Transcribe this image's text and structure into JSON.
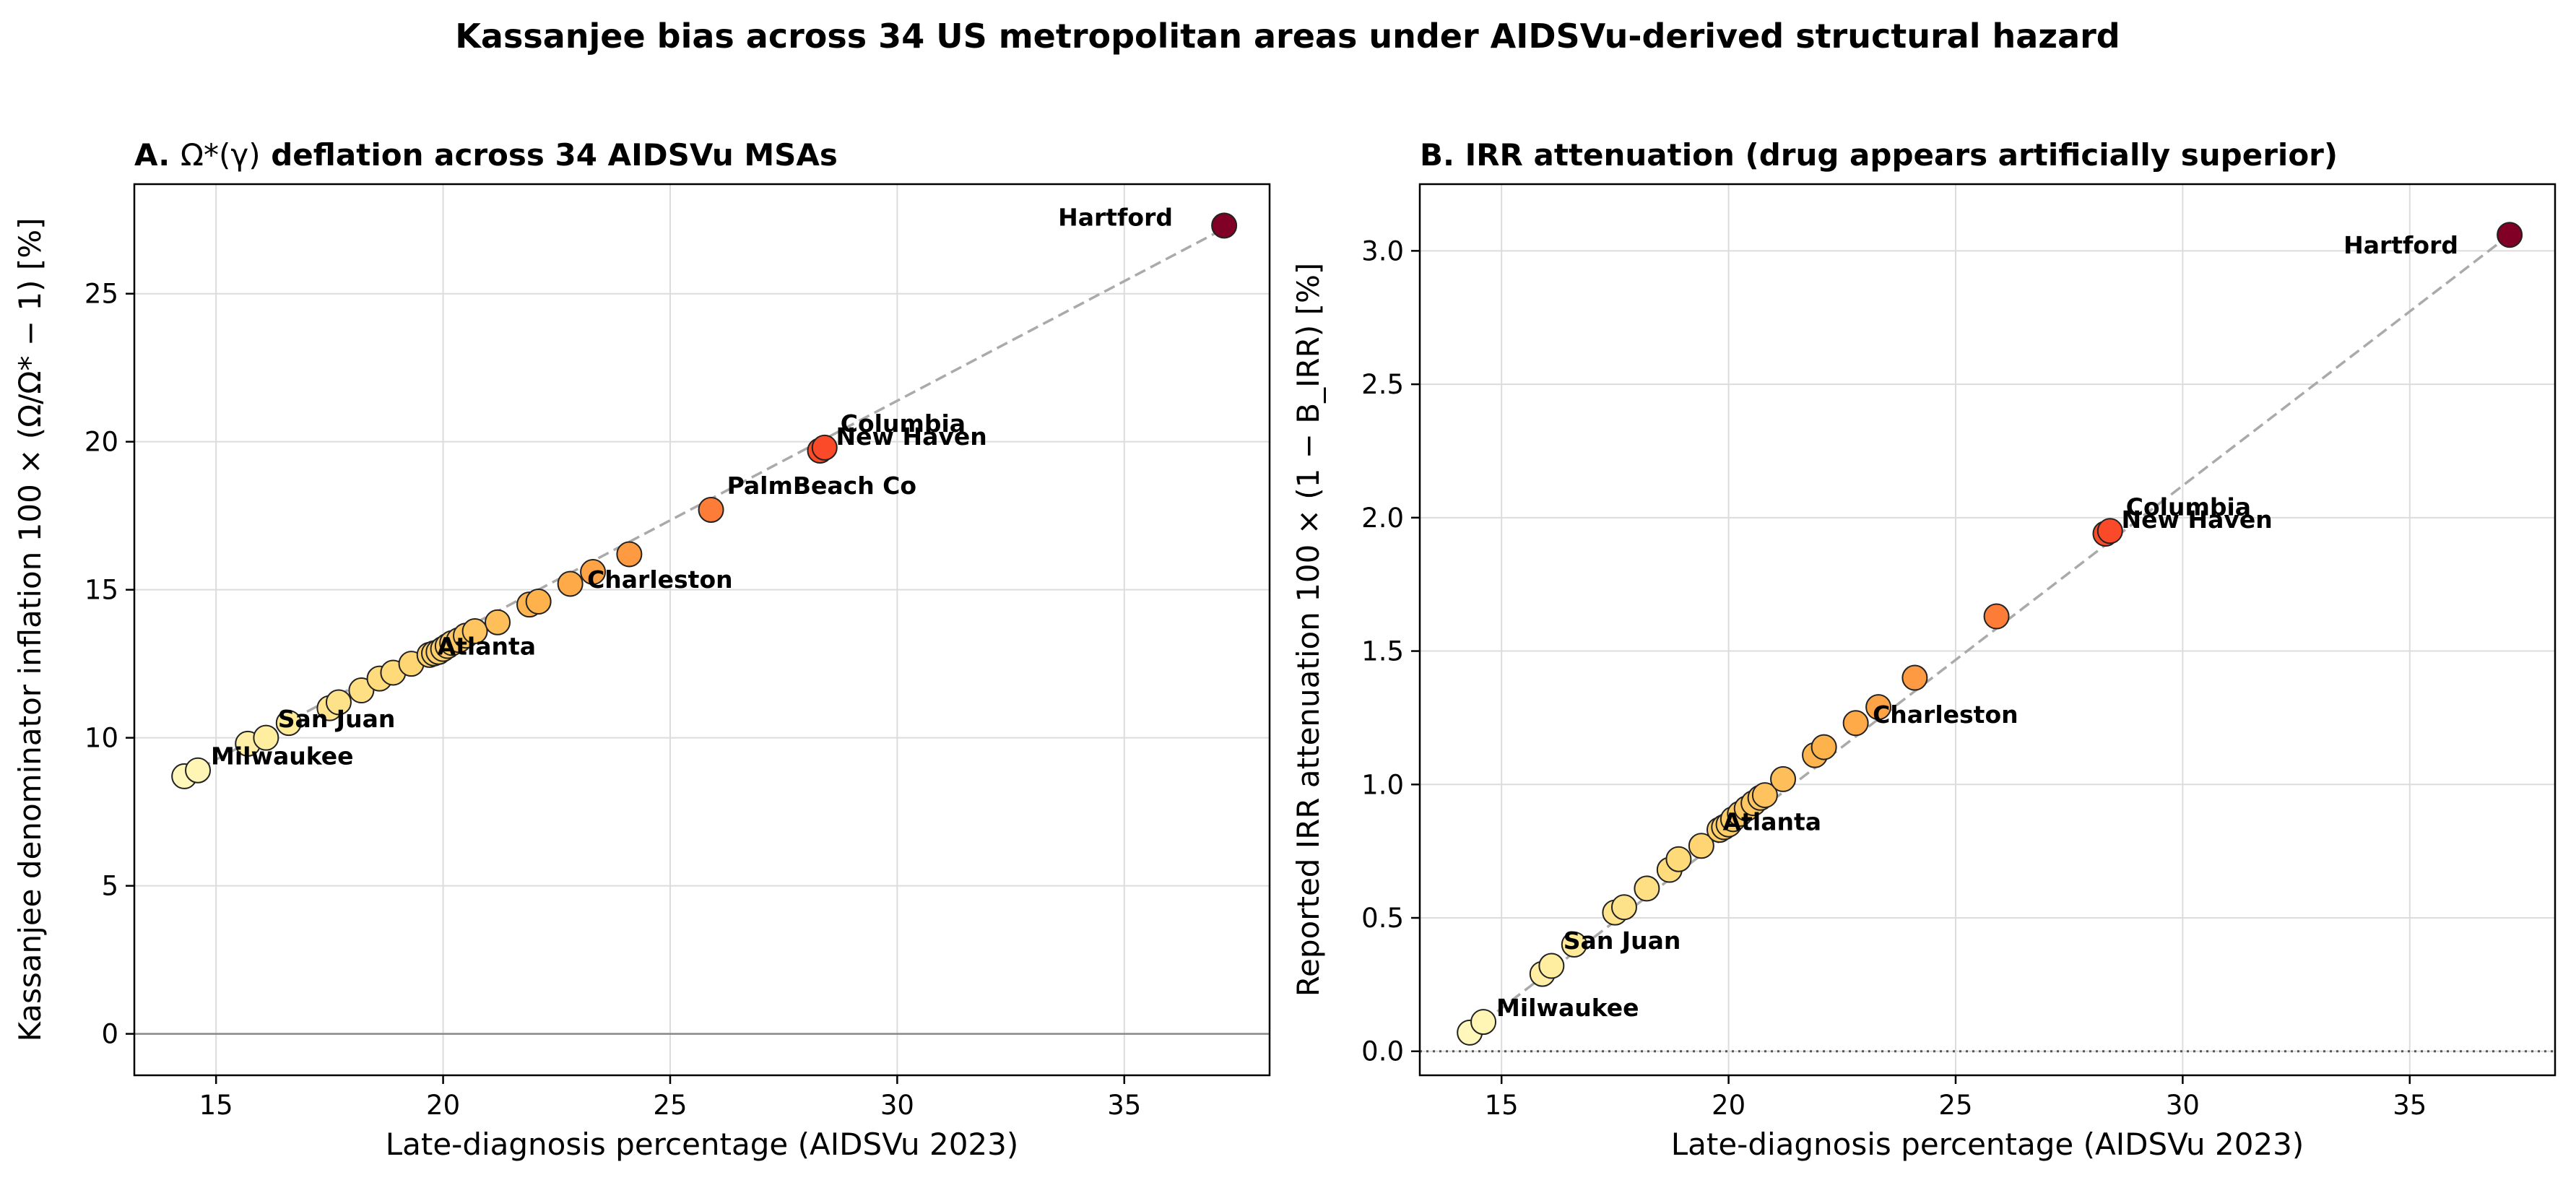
{
  "suptitle": "Kassanjee bias across 34 US metropolitan areas under AIDSVu-derived structural hazard",
  "chart_data": [
    {
      "type": "scatter",
      "title": "A. Ω*(γ) deflation across 34 AIDSVu MSAs",
      "title_prefix": "A. ",
      "title_math": "Ω*(γ)",
      "title_suffix": " deflation across 34 AIDSVu MSAs",
      "xlabel": "Late-diagnosis percentage (AIDSVu 2023)",
      "ylabel": "Kassanjee denominator inflation  100 × (Ω/Ω* − 1) [%]",
      "xlim": [
        13.2,
        38.2
      ],
      "ylim": [
        -1.4,
        28.7
      ],
      "xticks": [
        15,
        20,
        25,
        30,
        35
      ],
      "yticks": [
        0,
        5,
        10,
        15,
        20,
        25
      ],
      "grid": true,
      "reference_line": {
        "y": 0,
        "style": "solid"
      },
      "fit_line": {
        "x": [
          14.3,
          37.2
        ],
        "y": [
          8.7,
          27.2
        ],
        "style": "dashed"
      },
      "colormap": "YlOrRd",
      "points": [
        {
          "x": 14.3,
          "y": 8.7
        },
        {
          "x": 14.6,
          "y": 8.9
        },
        {
          "x": 15.7,
          "y": 9.8
        },
        {
          "x": 16.1,
          "y": 10.0
        },
        {
          "x": 16.6,
          "y": 10.5
        },
        {
          "x": 17.5,
          "y": 11.0
        },
        {
          "x": 17.7,
          "y": 11.2
        },
        {
          "x": 18.2,
          "y": 11.6
        },
        {
          "x": 18.6,
          "y": 12.0
        },
        {
          "x": 18.9,
          "y": 12.2
        },
        {
          "x": 19.3,
          "y": 12.5
        },
        {
          "x": 19.7,
          "y": 12.8
        },
        {
          "x": 19.8,
          "y": 12.85
        },
        {
          "x": 19.9,
          "y": 12.9
        },
        {
          "x": 20.0,
          "y": 13.0
        },
        {
          "x": 20.1,
          "y": 13.1
        },
        {
          "x": 20.2,
          "y": 13.2
        },
        {
          "x": 20.35,
          "y": 13.3
        },
        {
          "x": 20.5,
          "y": 13.45
        },
        {
          "x": 20.7,
          "y": 13.6
        },
        {
          "x": 21.2,
          "y": 13.9
        },
        {
          "x": 21.9,
          "y": 14.5
        },
        {
          "x": 22.1,
          "y": 14.6
        },
        {
          "x": 22.8,
          "y": 15.2
        },
        {
          "x": 23.3,
          "y": 15.6
        },
        {
          "x": 24.1,
          "y": 16.2
        },
        {
          "x": 25.9,
          "y": 17.7
        },
        {
          "x": 28.3,
          "y": 19.7
        },
        {
          "x": 28.4,
          "y": 19.8
        },
        {
          "x": 37.2,
          "y": 27.3
        }
      ],
      "annotations": [
        {
          "text": "Hartford",
          "x": 37.2,
          "y": 27.3
        },
        {
          "text": "Columbia",
          "x": 28.4,
          "y": 19.8
        },
        {
          "text": "New Haven",
          "x": 28.3,
          "y": 19.7
        },
        {
          "text": "PalmBeach Co",
          "x": 25.9,
          "y": 17.7
        },
        {
          "text": "Charleston",
          "x": 23.3,
          "y": 15.6
        },
        {
          "text": "Atlanta",
          "x": 20.0,
          "y": 13.0
        },
        {
          "text": "San Juan",
          "x": 16.6,
          "y": 10.5
        },
        {
          "text": "Milwaukee",
          "x": 14.6,
          "y": 8.9
        }
      ]
    },
    {
      "type": "scatter",
      "title": "B. IRR attenuation (drug appears artificially superior)",
      "title_prefix": "",
      "title_math": "",
      "title_suffix": "B. IRR attenuation (drug appears artificially superior)",
      "xlabel": "Late-diagnosis percentage (AIDSVu 2023)",
      "ylabel": "Reported IRR attenuation  100 × (1 − B_IRR) [%]",
      "xlim": [
        13.2,
        38.2
      ],
      "ylim": [
        -0.09,
        3.25
      ],
      "xticks": [
        15,
        20,
        25,
        30,
        35
      ],
      "yticks": [
        0.0,
        0.5,
        1.0,
        1.5,
        2.0,
        2.5,
        3.0
      ],
      "grid": true,
      "reference_line": {
        "y": 0,
        "style": "dotted"
      },
      "fit_line": {
        "x": [
          14.3,
          37.2
        ],
        "y": [
          0.07,
          3.06
        ],
        "style": "dashed"
      },
      "colormap": "YlOrRd",
      "points": [
        {
          "x": 14.3,
          "y": 0.07
        },
        {
          "x": 14.6,
          "y": 0.11
        },
        {
          "x": 15.9,
          "y": 0.29
        },
        {
          "x": 16.1,
          "y": 0.32
        },
        {
          "x": 16.6,
          "y": 0.4
        },
        {
          "x": 17.5,
          "y": 0.52
        },
        {
          "x": 17.7,
          "y": 0.54
        },
        {
          "x": 18.2,
          "y": 0.61
        },
        {
          "x": 18.7,
          "y": 0.68
        },
        {
          "x": 18.9,
          "y": 0.72
        },
        {
          "x": 19.4,
          "y": 0.77
        },
        {
          "x": 19.8,
          "y": 0.83
        },
        {
          "x": 19.9,
          "y": 0.84
        },
        {
          "x": 20.0,
          "y": 0.85
        },
        {
          "x": 20.1,
          "y": 0.87
        },
        {
          "x": 20.25,
          "y": 0.89
        },
        {
          "x": 20.4,
          "y": 0.91
        },
        {
          "x": 20.55,
          "y": 0.93
        },
        {
          "x": 20.7,
          "y": 0.95
        },
        {
          "x": 20.8,
          "y": 0.96
        },
        {
          "x": 21.2,
          "y": 1.02
        },
        {
          "x": 21.9,
          "y": 1.11
        },
        {
          "x": 22.1,
          "y": 1.14
        },
        {
          "x": 22.8,
          "y": 1.23
        },
        {
          "x": 23.3,
          "y": 1.29
        },
        {
          "x": 24.1,
          "y": 1.4
        },
        {
          "x": 25.9,
          "y": 1.63
        },
        {
          "x": 28.3,
          "y": 1.94
        },
        {
          "x": 28.4,
          "y": 1.95
        },
        {
          "x": 37.2,
          "y": 3.06
        }
      ],
      "annotations": [
        {
          "text": "Hartford",
          "x": 37.2,
          "y": 3.06
        },
        {
          "text": "Columbia",
          "x": 28.4,
          "y": 1.95
        },
        {
          "text": "New Haven",
          "x": 28.3,
          "y": 1.94
        },
        {
          "text": "Charleston",
          "x": 23.3,
          "y": 1.29
        },
        {
          "text": "Atlanta",
          "x": 20.0,
          "y": 0.85
        },
        {
          "text": "San Juan",
          "x": 16.6,
          "y": 0.4
        },
        {
          "text": "Milwaukee",
          "x": 14.6,
          "y": 0.11
        }
      ]
    }
  ]
}
